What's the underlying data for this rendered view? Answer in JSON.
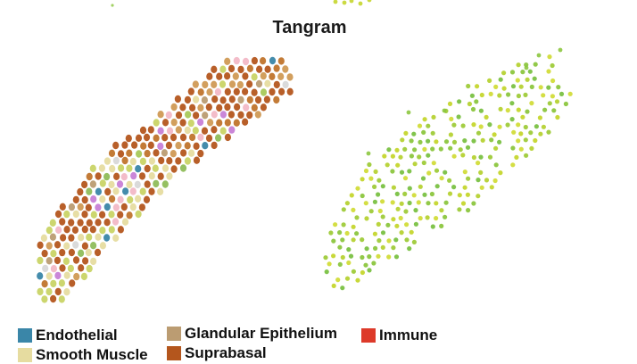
{
  "title": "Tangram",
  "legend": [
    {
      "label": "Endothelial",
      "color": "#3a86a8"
    },
    {
      "label": "Glandular Epithelium",
      "color": "#bb9c72"
    },
    {
      "label": "Immune",
      "color": "#dd3a2a"
    },
    {
      "label": "Smooth Muscle",
      "color": "#e6dca0"
    },
    {
      "label": "Suprabasal",
      "color": "#b4561d"
    }
  ],
  "left_panel_palette": [
    "#b4561d",
    "#c0742c",
    "#d09a55",
    "#bb9c72",
    "#e6dca0",
    "#c9d466",
    "#a8c95a",
    "#8fbd5a",
    "#f2b8c6",
    "#c77fd6",
    "#3a86a8",
    "#d8d8d8"
  ],
  "right_panel_palette": [
    "#c5d62e",
    "#b6d234",
    "#9fcb3a",
    "#8cc63f",
    "#7ac143",
    "#d2dc3a"
  ]
}
